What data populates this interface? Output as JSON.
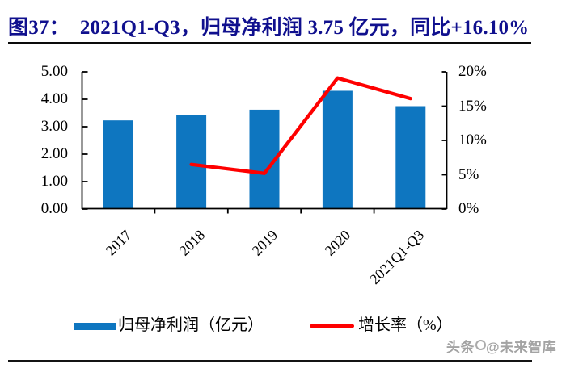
{
  "title": {
    "label": "图37：",
    "text": "2021Q1-Q3，归母净利润 3.75 亿元，同比+16.10%"
  },
  "chart_data": {
    "type": "bar+line",
    "categories": [
      "2017",
      "2018",
      "2019",
      "2020",
      "2021Q1-Q3"
    ],
    "series": [
      {
        "name": "归母净利润（亿元）",
        "type": "bar",
        "axis": "left",
        "values": [
          3.23,
          3.44,
          3.62,
          4.31,
          3.75
        ]
      },
      {
        "name": "增长率（%）",
        "type": "line",
        "axis": "right",
        "values": [
          null,
          6.5,
          5.2,
          19.1,
          16.1
        ]
      }
    ],
    "left_axis": {
      "min": 0,
      "max": 5,
      "tick_labels": [
        "0.00",
        "1.00",
        "2.00",
        "3.00",
        "4.00",
        "5.00"
      ]
    },
    "right_axis": {
      "min": 0,
      "max": 20,
      "tick_labels": [
        "0%",
        "5%",
        "10%",
        "15%",
        "20%"
      ]
    },
    "legend_position": "bottom",
    "grid": false,
    "x_label_rotation_deg": 45
  },
  "watermark": {
    "prefix": "头条",
    "suffix": "@未来智库"
  },
  "colors": {
    "bar": "#0E76C0",
    "line": "#FE0000",
    "title": "#10108E",
    "axis": "#000000",
    "watermark": "#A3A3A3"
  }
}
